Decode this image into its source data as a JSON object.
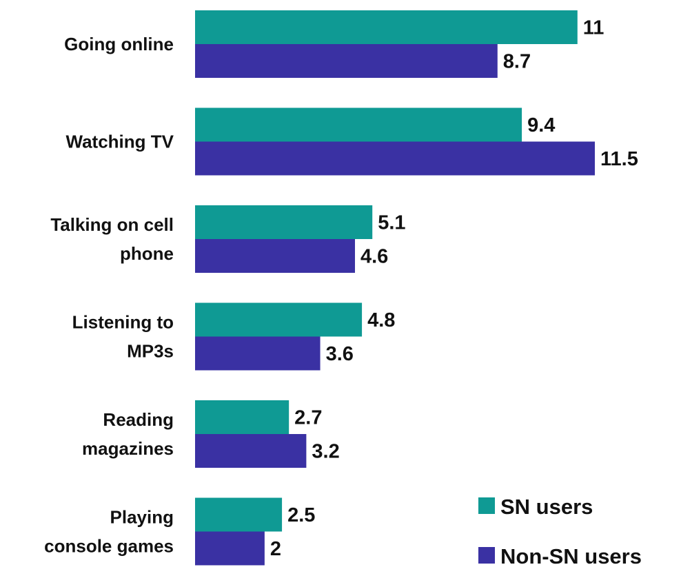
{
  "chart_data": {
    "type": "bar",
    "orientation": "horizontal",
    "categories": [
      [
        "Going online"
      ],
      [
        "Watching TV"
      ],
      [
        "Talking on cell",
        "phone"
      ],
      [
        "Listening to",
        "MP3s"
      ],
      [
        "Reading",
        "magazines"
      ],
      [
        "Playing",
        "console games"
      ]
    ],
    "series": [
      {
        "name": "SN users",
        "color": "#0f9a94",
        "values": [
          11,
          9.4,
          5.1,
          4.8,
          2.7,
          2.5
        ],
        "labels": [
          "11",
          "9.4",
          "5.1",
          "4.8",
          "2.7",
          "2.5"
        ]
      },
      {
        "name": "Non-SN users",
        "color": "#3a31a3",
        "values": [
          8.7,
          11.5,
          4.6,
          3.6,
          3.2,
          2
        ],
        "labels": [
          "8.7",
          "11.5",
          "4.6",
          "3.6",
          "3.2",
          "2"
        ]
      }
    ],
    "xlim": [
      0,
      12
    ],
    "grid": false,
    "legend_position": "bottom-right"
  }
}
